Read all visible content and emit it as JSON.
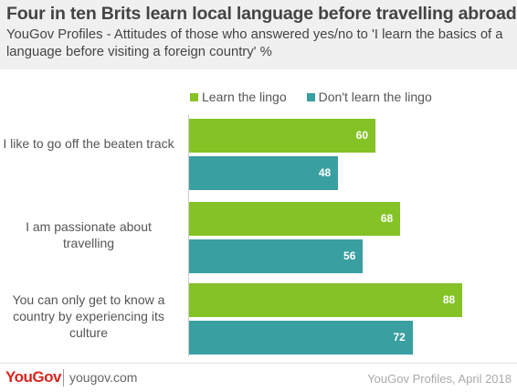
{
  "header": {
    "title": "Four in ten Brits learn local language before travelling abroad",
    "subtitle": "YouGov Profiles - Attitudes of those who answered yes/no to 'I learn the basics of a language before visiting a foreign country' %"
  },
  "colors": {
    "learn": "#84c225",
    "dont_learn": "#3a9fa0",
    "header_bg": "#f0f0f0",
    "brand_red": "#d7261e"
  },
  "chart_data": {
    "type": "bar",
    "orientation": "horizontal",
    "categories": [
      "I like to go off the beaten track",
      "I am passionate about travelling",
      "You can only get to know a country by experiencing its culture"
    ],
    "series": [
      {
        "name": "Learn the lingo",
        "values": [
          60,
          68,
          88
        ]
      },
      {
        "name": "Don't learn the lingo",
        "values": [
          48,
          56,
          72
        ]
      }
    ],
    "xlim": [
      0,
      100
    ],
    "legend": "top",
    "grid": false,
    "data_labels": true
  },
  "footer": {
    "logo": "YouGov",
    "site": "yougov.com",
    "source": "YouGov Profiles, April 2018"
  }
}
